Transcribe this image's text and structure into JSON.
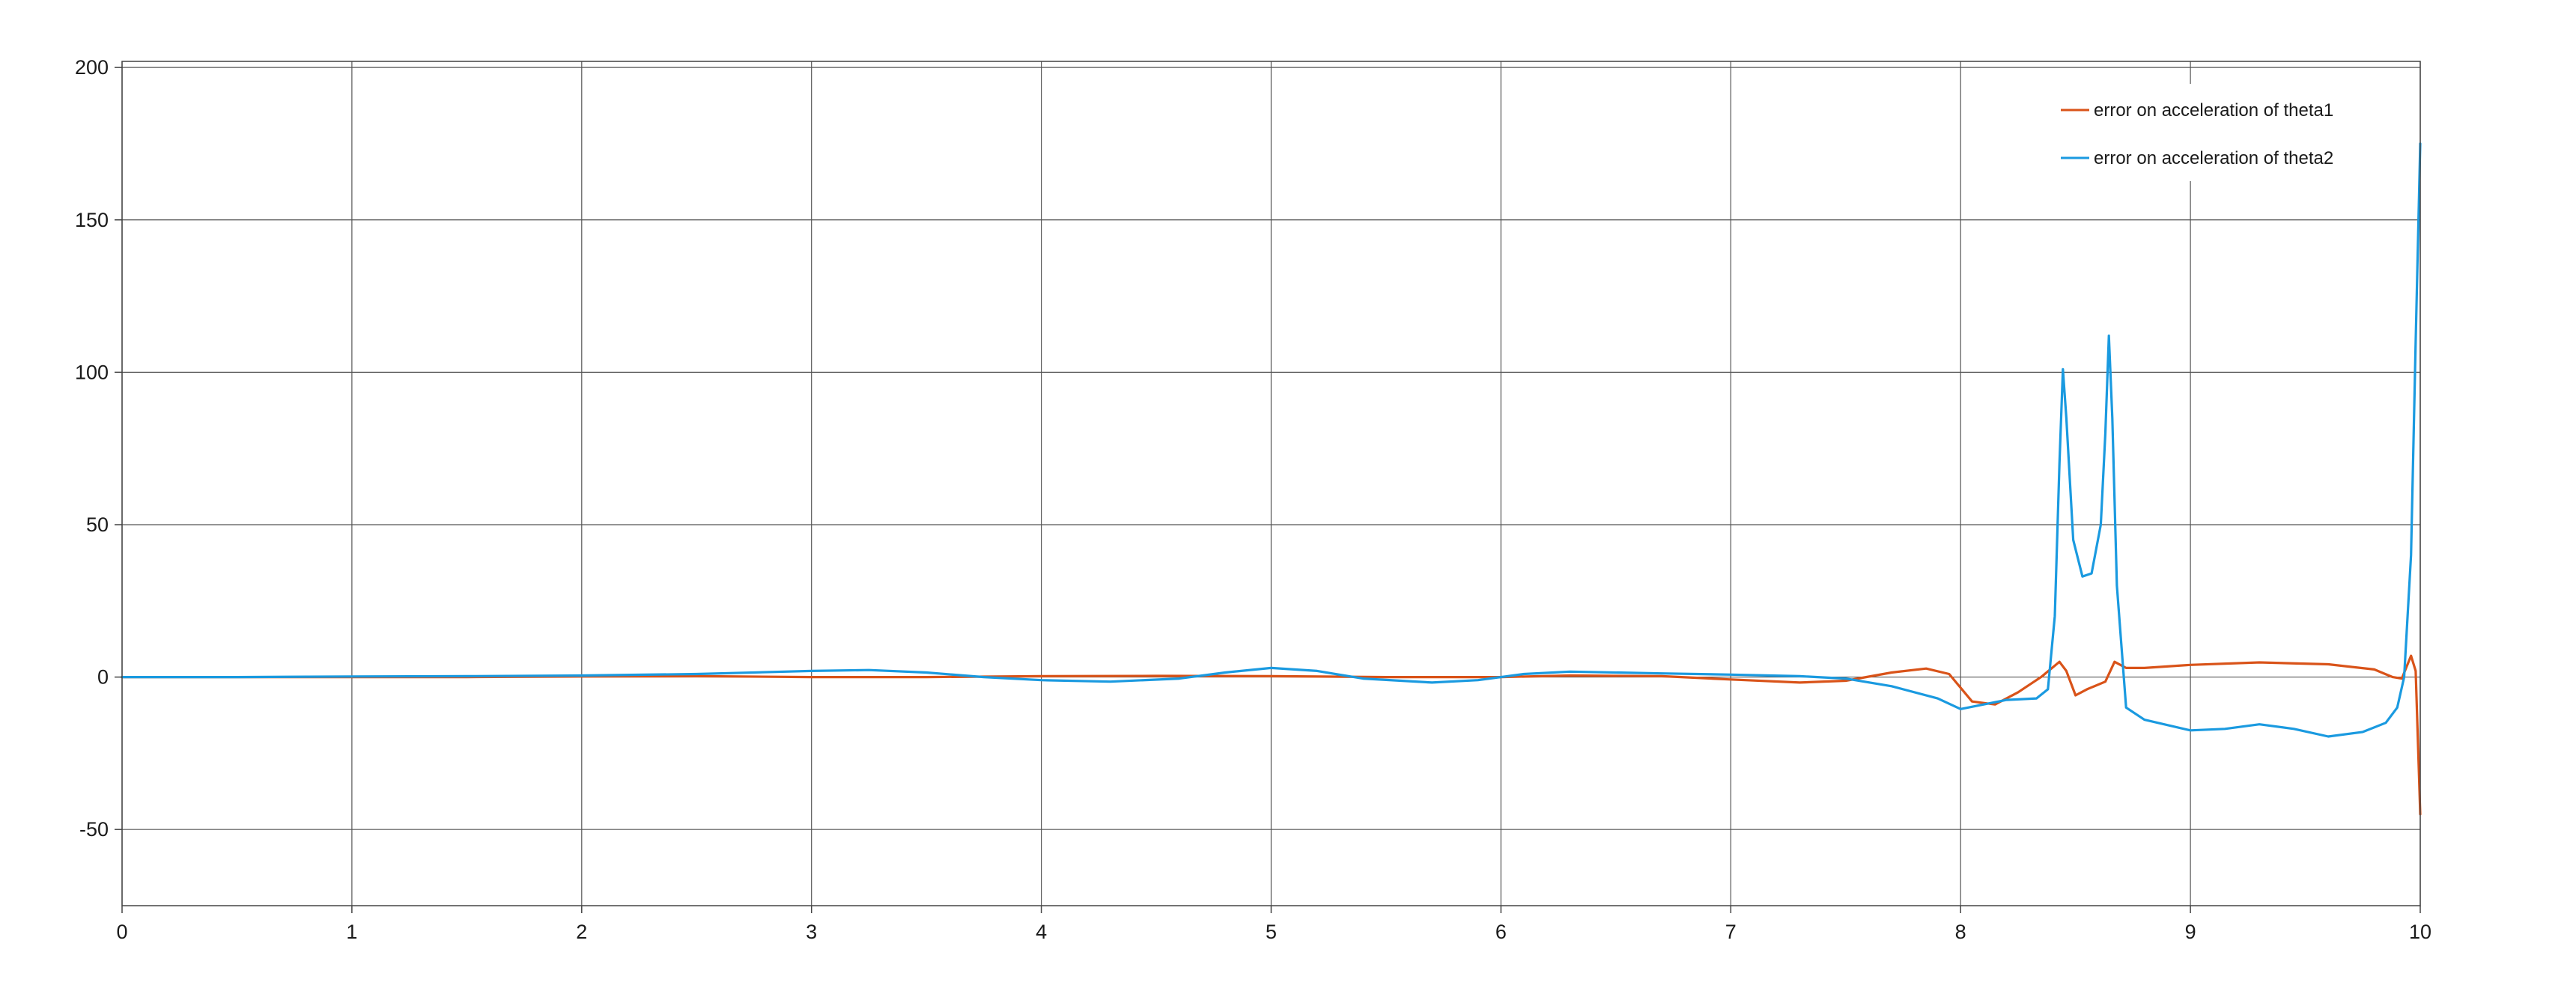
{
  "chart_data": {
    "type": "line",
    "title": "",
    "xlabel": "",
    "ylabel": "",
    "xlim": [
      0,
      10
    ],
    "ylim": [
      -75,
      202
    ],
    "x_ticks": [
      0,
      1,
      2,
      3,
      4,
      5,
      6,
      7,
      8,
      9,
      10
    ],
    "x_tick_labels": [
      "0",
      "1",
      "2",
      "3",
      "4",
      "5",
      "6",
      "7",
      "8",
      "9",
      "10"
    ],
    "y_ticks": [
      -50,
      0,
      50,
      100,
      150,
      200
    ],
    "y_tick_labels": [
      "-50",
      "0",
      "50",
      "100",
      "150",
      "200"
    ],
    "grid": true,
    "legend_position": "top-right",
    "series": [
      {
        "name": "error on acceleration of theta1",
        "color": "#d95319",
        "points": [
          [
            0,
            0
          ],
          [
            0.5,
            0
          ],
          [
            1,
            0
          ],
          [
            1.5,
            0
          ],
          [
            2,
            0.2
          ],
          [
            2.5,
            0.3
          ],
          [
            3,
            0
          ],
          [
            3.5,
            0
          ],
          [
            4,
            0.3
          ],
          [
            4.5,
            0.4
          ],
          [
            5,
            0.3
          ],
          [
            5.5,
            0
          ],
          [
            6,
            0
          ],
          [
            6.3,
            0.5
          ],
          [
            6.7,
            0.3
          ],
          [
            7,
            -0.8
          ],
          [
            7.3,
            -1.8
          ],
          [
            7.5,
            -1.2
          ],
          [
            7.7,
            1.5
          ],
          [
            7.85,
            2.8
          ],
          [
            7.95,
            1
          ],
          [
            8.05,
            -8
          ],
          [
            8.15,
            -9
          ],
          [
            8.25,
            -5
          ],
          [
            8.35,
            0
          ],
          [
            8.43,
            5
          ],
          [
            8.46,
            2
          ],
          [
            8.5,
            -6
          ],
          [
            8.55,
            -4
          ],
          [
            8.63,
            -1.5
          ],
          [
            8.67,
            5
          ],
          [
            8.72,
            3
          ],
          [
            8.8,
            3
          ],
          [
            9,
            4
          ],
          [
            9.3,
            4.8
          ],
          [
            9.6,
            4.2
          ],
          [
            9.8,
            2.5
          ],
          [
            9.88,
            0
          ],
          [
            9.92,
            -0.5
          ],
          [
            9.96,
            7
          ],
          [
            9.98,
            2
          ],
          [
            10,
            -45
          ]
        ]
      },
      {
        "name": "error on acceleration of theta2",
        "color": "#1a9ae0",
        "points": [
          [
            0,
            0
          ],
          [
            0.5,
            0
          ],
          [
            1,
            0.2
          ],
          [
            1.5,
            0.3
          ],
          [
            2,
            0.5
          ],
          [
            2.5,
            1
          ],
          [
            3,
            2
          ],
          [
            3.25,
            2.3
          ],
          [
            3.5,
            1.5
          ],
          [
            3.75,
            0
          ],
          [
            4,
            -1
          ],
          [
            4.3,
            -1.5
          ],
          [
            4.6,
            -0.5
          ],
          [
            4.8,
            1.5
          ],
          [
            5,
            3
          ],
          [
            5.2,
            2
          ],
          [
            5.4,
            -0.5
          ],
          [
            5.7,
            -1.8
          ],
          [
            5.9,
            -1
          ],
          [
            6.1,
            1
          ],
          [
            6.3,
            1.8
          ],
          [
            6.7,
            1.2
          ],
          [
            7,
            0.8
          ],
          [
            7.3,
            0.3
          ],
          [
            7.5,
            -0.5
          ],
          [
            7.7,
            -3
          ],
          [
            7.9,
            -7
          ],
          [
            8,
            -10.5
          ],
          [
            8.1,
            -9
          ],
          [
            8.2,
            -7.5
          ],
          [
            8.33,
            -7
          ],
          [
            8.38,
            -4
          ],
          [
            8.41,
            20
          ],
          [
            8.43,
            70
          ],
          [
            8.445,
            101
          ],
          [
            8.46,
            85
          ],
          [
            8.49,
            45
          ],
          [
            8.53,
            33
          ],
          [
            8.57,
            34
          ],
          [
            8.61,
            50
          ],
          [
            8.63,
            80
          ],
          [
            8.645,
            112
          ],
          [
            8.66,
            85
          ],
          [
            8.68,
            30
          ],
          [
            8.72,
            -10
          ],
          [
            8.8,
            -14
          ],
          [
            9,
            -17.5
          ],
          [
            9.15,
            -17
          ],
          [
            9.3,
            -15.5
          ],
          [
            9.45,
            -17
          ],
          [
            9.6,
            -19.5
          ],
          [
            9.75,
            -18
          ],
          [
            9.85,
            -15
          ],
          [
            9.9,
            -10
          ],
          [
            9.93,
            0
          ],
          [
            9.96,
            40
          ],
          [
            9.98,
            110
          ],
          [
            10,
            175
          ]
        ]
      }
    ]
  }
}
